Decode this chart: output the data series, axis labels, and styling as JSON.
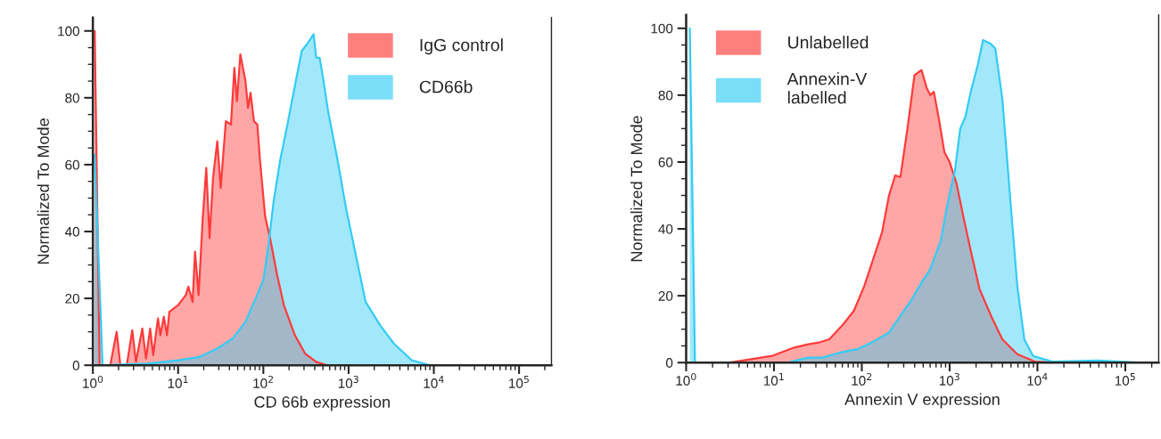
{
  "chart_data": [
    {
      "type": "area",
      "xlabel": "CD 66b expression",
      "ylabel": "Normalized To Mode",
      "log": "x",
      "xlim": [
        1,
        240000
      ],
      "xticks": [
        {
          "value": 1,
          "label": "10$^{0}$"
        },
        {
          "value": 10,
          "label": "10$^{1}$"
        },
        {
          "value": 100,
          "label": "10$^{2}$"
        },
        {
          "value": 1000,
          "label": "10$^{3}$"
        },
        {
          "value": 10000,
          "label": "10$^{4}$"
        },
        {
          "value": 100000,
          "label": "10$^{5}$"
        }
      ],
      "ylim": [
        0,
        104
      ],
      "yticks": [
        0,
        20,
        40,
        60,
        80,
        100
      ],
      "legend": "top right",
      "grid": false,
      "series": [
        {
          "name": "IgG control",
          "color": "#ff3b3b",
          "x": [
            1.05,
            1.2,
            1.6,
            1.9,
            2.1,
            2.5,
            2.9,
            3.2,
            3.8,
            4.2,
            4.7,
            5.1,
            5.8,
            6.2,
            6.8,
            7.4,
            7.9,
            10,
            12.3,
            13.2,
            14.8,
            15.8,
            17.4,
            19.5,
            21.4,
            23.4,
            25.7,
            28.8,
            31.6,
            36.3,
            41.7,
            45.7,
            49,
            53.7,
            61.7,
            66.1,
            70.8,
            77.6,
            85.1,
            91.2,
            105,
            120,
            145,
            174,
            234,
            309,
            417,
            550,
            240000
          ],
          "values": [
            100,
            0,
            0,
            10,
            0,
            0,
            10.5,
            1,
            11,
            2,
            11,
            3,
            14,
            9,
            14.5,
            9,
            16,
            18,
            21,
            23.5,
            19,
            34,
            21,
            44.5,
            59,
            38,
            56,
            67,
            53,
            73,
            72,
            89,
            79,
            93,
            85,
            77,
            81.5,
            73,
            72,
            61.5,
            44.5,
            38,
            27,
            18,
            9,
            3.5,
            1,
            0,
            0
          ]
        },
        {
          "name": "CD66b",
          "color": "#33ccf5",
          "x": [
            1.05,
            1.3,
            4.3,
            10,
            17.8,
            28.8,
            43.7,
            61.7,
            81.3,
            100,
            115,
            132,
            158,
            195,
            234,
            282,
            324,
            389,
            417,
            457,
            501,
            575,
            741,
            933,
            1170,
            1580,
            2340,
            3390,
            5500,
            8900,
            240000
          ],
          "values": [
            63,
            0,
            0.5,
            1.5,
            2.5,
            5,
            8,
            13,
            20,
            25.5,
            36,
            49,
            61.5,
            73,
            83.5,
            94,
            96,
            99,
            92,
            92,
            86,
            76,
            61.5,
            47,
            35,
            19,
            12,
            6.5,
            1.5,
            0,
            0
          ]
        }
      ]
    },
    {
      "type": "area",
      "xlabel": "Annexin V expression",
      "ylabel": "Normalized To Mode",
      "log": "x",
      "xlim": [
        1,
        240000
      ],
      "xticks": [
        {
          "value": 1,
          "label": "10$^{0}$"
        },
        {
          "value": 10,
          "label": "10$^{1}$"
        },
        {
          "value": 100,
          "label": "10$^{2}$"
        },
        {
          "value": 1000,
          "label": "10$^{3}$"
        },
        {
          "value": 10000,
          "label": "10$^{4}$"
        },
        {
          "value": 100000,
          "label": "10$^{5}$"
        }
      ],
      "ylim": [
        0,
        104
      ],
      "yticks": [
        0,
        20,
        40,
        60,
        80,
        100
      ],
      "legend": "top left",
      "grid": false,
      "series": [
        {
          "name": "Unlabelled",
          "color": "#ff3b3b",
          "x": [
            3.16,
            5.5,
            9.5,
            17,
            24.5,
            32.4,
            42.7,
            61.7,
            81.3,
            107,
            141,
            170,
            204,
            240,
            275,
            331,
            398,
            479,
            550,
            603,
            661,
            759,
            871,
            1000,
            1200,
            1450,
            1740,
            2190,
            3020,
            3980,
            5890,
            9330,
            14800,
            240000
          ],
          "values": [
            0,
            1,
            2,
            4.5,
            5.5,
            6,
            7,
            11.5,
            15.5,
            23,
            32.5,
            39,
            50,
            56,
            55.5,
            70,
            86,
            87.5,
            82,
            80,
            81,
            72.5,
            63,
            60,
            53.5,
            43,
            33.5,
            22,
            13.5,
            7,
            2.5,
            0.3,
            0,
            0
          ]
        },
        {
          "name": "Annexin-V\nlabelled",
          "color": "#33ccf5",
          "x": [
            1.1,
            1.26,
            14.1,
            24.5,
            35.5,
            56.2,
            89.1,
            141,
            204,
            275,
            363,
            479,
            603,
            794,
            955,
            1150,
            1320,
            1510,
            1740,
            2090,
            2400,
            2880,
            3310,
            3980,
            4900,
            5890,
            7080,
            8910,
            14800,
            49000,
            87100,
            151000,
            240000
          ],
          "values": [
            100,
            0,
            0,
            1.5,
            1.5,
            3,
            4,
            6.5,
            9,
            14,
            18.5,
            24,
            28,
            36.5,
            48,
            57.5,
            70,
            73.5,
            81,
            89,
            96.5,
            95.5,
            94,
            79,
            49,
            23,
            7,
            2,
            0.3,
            0.6,
            0.3,
            0,
            0
          ]
        }
      ]
    }
  ]
}
